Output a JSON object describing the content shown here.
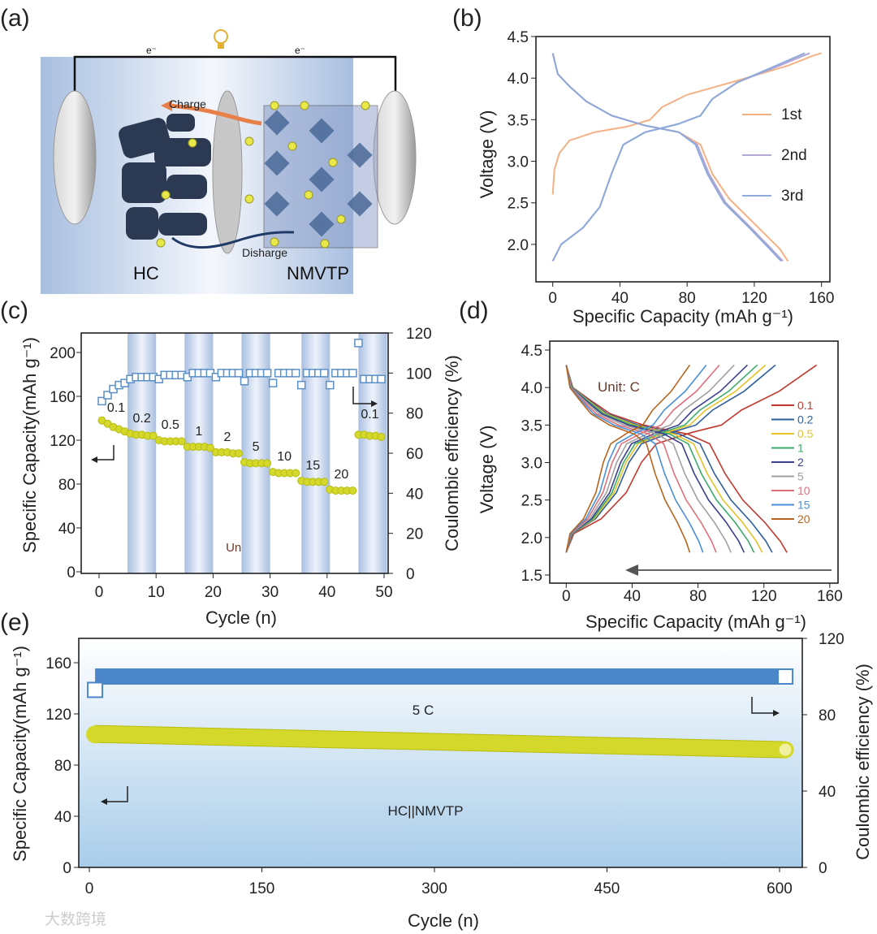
{
  "panel_labels": [
    "(a)",
    "(b)",
    "(c)",
    "(d)",
    "(e)"
  ],
  "schematic": {
    "electron_left": "e⁻",
    "electron_right": "e⁻",
    "charge_label": "Charge",
    "discharge_label": "Disharge",
    "anode_label": "HC",
    "cathode_label": "NMVTP",
    "icon": "lightbulb-icon",
    "colors": {
      "charge_arrow": "#e8804a",
      "discharge_arrow": "#1f3a66",
      "na_ion": "#e8e84a"
    }
  },
  "watermark": "大数跨境",
  "chart_data": [
    {
      "id": "b",
      "type": "line",
      "xlabel": "Specific Capacity (mAh g⁻¹)",
      "ylabel": "Voltage (V)",
      "xlim": [
        -10,
        165
      ],
      "ylim": [
        1.55,
        4.5
      ],
      "xticks": [
        "0",
        "40",
        "80",
        "120",
        "160"
      ],
      "yticks": [
        "2.0",
        "2.5",
        "3.0",
        "3.5",
        "4.0",
        "4.5"
      ],
      "legend_position": "right",
      "series": [
        {
          "name": "1st",
          "color": "#f4b183",
          "charge": [
            [
              0,
              2.6
            ],
            [
              1,
              2.9
            ],
            [
              4,
              3.1
            ],
            [
              10,
              3.25
            ],
            [
              25,
              3.35
            ],
            [
              45,
              3.42
            ],
            [
              58,
              3.5
            ],
            [
              65,
              3.65
            ],
            [
              80,
              3.8
            ],
            [
              110,
              3.97
            ],
            [
              140,
              4.15
            ],
            [
              155,
              4.27
            ],
            [
              160,
              4.3
            ]
          ],
          "discharge": [
            [
              0,
              4.3
            ],
            [
              3,
              4.05
            ],
            [
              10,
              3.9
            ],
            [
              20,
              3.72
            ],
            [
              35,
              3.55
            ],
            [
              55,
              3.43
            ],
            [
              75,
              3.35
            ],
            [
              88,
              3.2
            ],
            [
              95,
              2.85
            ],
            [
              105,
              2.55
            ],
            [
              120,
              2.25
            ],
            [
              135,
              1.95
            ],
            [
              140,
              1.8
            ]
          ]
        },
        {
          "name": "2nd",
          "color": "#b4a7d6",
          "charge": [
            [
              0,
              1.8
            ],
            [
              5,
              2.0
            ],
            [
              18,
              2.2
            ],
            [
              28,
              2.45
            ],
            [
              35,
              2.85
            ],
            [
              42,
              3.2
            ],
            [
              55,
              3.35
            ],
            [
              75,
              3.45
            ],
            [
              88,
              3.55
            ],
            [
              95,
              3.75
            ],
            [
              110,
              3.95
            ],
            [
              135,
              4.15
            ],
            [
              153,
              4.3
            ]
          ],
          "discharge": [
            [
              0,
              4.3
            ],
            [
              3,
              4.05
            ],
            [
              10,
              3.9
            ],
            [
              20,
              3.72
            ],
            [
              35,
              3.55
            ],
            [
              55,
              3.43
            ],
            [
              75,
              3.35
            ],
            [
              86,
              3.2
            ],
            [
              93,
              2.85
            ],
            [
              103,
              2.5
            ],
            [
              118,
              2.2
            ],
            [
              130,
              1.95
            ],
            [
              137,
              1.8
            ]
          ]
        },
        {
          "name": "3rd",
          "color": "#8eaadb",
          "charge": [
            [
              0,
              1.8
            ],
            [
              5,
              2.0
            ],
            [
              18,
              2.2
            ],
            [
              28,
              2.45
            ],
            [
              35,
              2.85
            ],
            [
              42,
              3.2
            ],
            [
              55,
              3.35
            ],
            [
              75,
              3.45
            ],
            [
              88,
              3.55
            ],
            [
              95,
              3.75
            ],
            [
              110,
              3.95
            ],
            [
              133,
              4.15
            ],
            [
              150,
              4.3
            ]
          ],
          "discharge": [
            [
              0,
              4.3
            ],
            [
              3,
              4.05
            ],
            [
              10,
              3.9
            ],
            [
              20,
              3.72
            ],
            [
              35,
              3.55
            ],
            [
              55,
              3.43
            ],
            [
              75,
              3.35
            ],
            [
              85,
              3.2
            ],
            [
              92,
              2.85
            ],
            [
              102,
              2.5
            ],
            [
              117,
              2.2
            ],
            [
              129,
              1.95
            ],
            [
              136,
              1.8
            ]
          ]
        }
      ]
    },
    {
      "id": "c",
      "type": "scatter",
      "xlabel": "Cycle  (n)",
      "ylabel_left": "Specific Capacity(mAh g⁻¹)",
      "ylabel_right": "Coulombic efficiency (%)",
      "xlim": [
        -3,
        51
      ],
      "ylim_left": [
        0,
        218
      ],
      "ylim_right": [
        0,
        120
      ],
      "xticks": [
        "0",
        "10",
        "20",
        "30",
        "40",
        "50"
      ],
      "yticks_left": [
        "0",
        "40",
        "80",
        "120",
        "160",
        "200"
      ],
      "yticks_right": [
        "0",
        "20",
        "40",
        "60",
        "80",
        "100",
        "120"
      ],
      "annotation": "Unit: C",
      "rates": [
        "0.1",
        "0.2",
        "0.5",
        "1",
        "2",
        "5",
        "10",
        "15",
        "20",
        "0.1"
      ],
      "shaded_cycle_ranges": [
        [
          5,
          10
        ],
        [
          15,
          20
        ],
        [
          25,
          30
        ],
        [
          35.5,
          40.5
        ],
        [
          45.5,
          50.5
        ]
      ],
      "cycles": [
        1,
        2,
        3,
        4,
        5,
        6,
        7,
        8,
        9,
        10,
        11,
        12,
        13,
        14,
        15,
        16,
        17,
        18,
        19,
        20,
        21,
        22,
        23,
        24,
        25,
        26,
        27,
        28,
        29,
        30,
        31,
        32,
        33,
        34,
        35,
        36,
        37,
        38,
        39,
        40,
        41,
        42,
        43,
        44,
        45,
        46,
        47,
        48,
        49,
        50
      ],
      "capacity": [
        138,
        135,
        132,
        130,
        128,
        126,
        125,
        125,
        124,
        124,
        120,
        119,
        119,
        119,
        119,
        114,
        114,
        114,
        114,
        113,
        109,
        109,
        109,
        108,
        108,
        100,
        99,
        99,
        99,
        99,
        91,
        90,
        90,
        90,
        90,
        83,
        82,
        82,
        82,
        82,
        75,
        74,
        74,
        74,
        74,
        125,
        125,
        124,
        124,
        123
      ],
      "coulombic_efficiency": [
        86,
        89,
        92,
        94,
        95,
        97,
        98,
        98,
        98,
        98,
        97,
        99,
        99,
        99,
        99,
        98,
        100,
        100,
        100,
        100,
        98,
        100,
        100,
        100,
        100,
        96,
        100,
        100,
        100,
        100,
        95,
        100,
        100,
        100,
        100,
        94,
        100,
        100,
        100,
        100,
        94,
        100,
        100,
        100,
        100,
        115,
        97,
        97,
        97,
        97
      ],
      "colors": {
        "capacity": "#d4d82a",
        "ce": "#5b8fc7"
      }
    },
    {
      "id": "d",
      "type": "line",
      "xlabel": "Specific Capacity (mAh g⁻¹)",
      "ylabel": "Voltage (V)",
      "xlim": [
        -10,
        165
      ],
      "ylim": [
        1.5,
        4.5
      ],
      "xticks": [
        "0",
        "40",
        "80",
        "120",
        "160"
      ],
      "yticks": [
        "1.5",
        "2.0",
        "2.5",
        "3.0",
        "3.5",
        "4.0",
        "4.5"
      ],
      "annotation": "Unit: C",
      "legend_position": "right",
      "series": [
        {
          "name": "0.1",
          "color": "#c0392b",
          "discharge_capacity": 134,
          "charge_capacity": 152
        },
        {
          "name": "0.2",
          "color": "#2e5f9e",
          "discharge_capacity": 125,
          "charge_capacity": 127
        },
        {
          "name": "0.5",
          "color": "#e6c229",
          "discharge_capacity": 119,
          "charge_capacity": 121
        },
        {
          "name": "1",
          "color": "#3cab6b",
          "discharge_capacity": 114,
          "charge_capacity": 116
        },
        {
          "name": "2",
          "color": "#3b3f8c",
          "discharge_capacity": 108,
          "charge_capacity": 110
        },
        {
          "name": "5",
          "color": "#a0a0a0",
          "discharge_capacity": 100,
          "charge_capacity": 102
        },
        {
          "name": "10",
          "color": "#e06f7a",
          "discharge_capacity": 91,
          "charge_capacity": 93
        },
        {
          "name": "15",
          "color": "#4a90d9",
          "discharge_capacity": 83,
          "charge_capacity": 85
        },
        {
          "name": "20",
          "color": "#b5651d",
          "discharge_capacity": 75,
          "charge_capacity": 75
        }
      ],
      "normalized_discharge_shape": [
        [
          0,
          4.3
        ],
        [
          0.03,
          4.0
        ],
        [
          0.1,
          3.85
        ],
        [
          0.2,
          3.65
        ],
        [
          0.35,
          3.5
        ],
        [
          0.55,
          3.38
        ],
        [
          0.65,
          3.25
        ],
        [
          0.72,
          2.85
        ],
        [
          0.8,
          2.5
        ],
        [
          0.9,
          2.2
        ],
        [
          0.97,
          1.95
        ],
        [
          1,
          1.8
        ]
      ],
      "normalized_charge_shape": [
        [
          0,
          1.8
        ],
        [
          0.03,
          2.05
        ],
        [
          0.14,
          2.25
        ],
        [
          0.24,
          2.6
        ],
        [
          0.3,
          3.0
        ],
        [
          0.36,
          3.25
        ],
        [
          0.5,
          3.4
        ],
        [
          0.62,
          3.5
        ],
        [
          0.7,
          3.7
        ],
        [
          0.85,
          3.95
        ],
        [
          1,
          4.3
        ]
      ]
    },
    {
      "id": "e",
      "type": "scatter",
      "xlabel": "Cycle  (n)",
      "ylabel_left": "Specific Capacity(mAh g⁻¹)",
      "ylabel_right": "Coulombic efficiency (%)",
      "xlim": [
        -9,
        620
      ],
      "ylim_left": [
        0,
        179
      ],
      "ylim_right": [
        0,
        120
      ],
      "xticks": [
        "0",
        "150",
        "300",
        "450",
        "600"
      ],
      "yticks_left": [
        "0",
        "40",
        "80",
        "120",
        "160"
      ],
      "yticks_right": [
        "0",
        "40",
        "80",
        "120"
      ],
      "rate_annotation": "5 C",
      "cell_annotation": "HC||NMVTP",
      "capacity_start": 104,
      "capacity_end": 92,
      "ce_first": 93,
      "ce_steady": 100,
      "cycles_total": 605,
      "colors": {
        "capacity": "#d4d82a",
        "ce": "#4a86c8"
      }
    }
  ]
}
